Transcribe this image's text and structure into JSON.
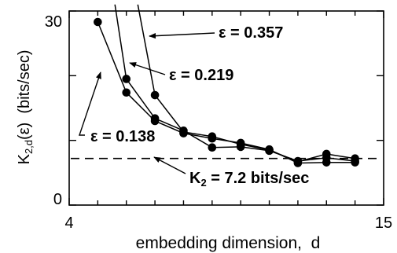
{
  "chart_data": {
    "type": "line",
    "xlabel": "embedding dimension,  d",
    "ylabel": {
      "main": "K",
      "sub": "2,d",
      "rest": "(ε)  (bits/sec)"
    },
    "xlim": [
      4,
      15
    ],
    "ylim": [
      0,
      30
    ],
    "x_ticks": [
      4,
      5,
      6,
      7,
      8,
      9,
      10,
      11,
      12,
      13,
      14,
      15
    ],
    "x_tick_labels": [
      "4",
      "15"
    ],
    "y_ticks": [
      0,
      10,
      20,
      30
    ],
    "y_tick_labels": [
      "0",
      "30"
    ],
    "grid": false,
    "series": [
      {
        "name": "ε = 0.357",
        "x": [
          6.4,
          7,
          8,
          9,
          10,
          11,
          12,
          13,
          14
        ],
        "y": [
          31,
          17,
          11.3,
          10.6,
          9.4,
          8.5,
          6.7,
          7.9,
          7.2
        ],
        "markers": [
          false,
          true,
          true,
          true,
          true,
          true,
          true,
          true,
          true
        ]
      },
      {
        "name": "ε = 0.219",
        "x": [
          5.6,
          6,
          7,
          8,
          9,
          10,
          11,
          12,
          13,
          14
        ],
        "y": [
          31,
          19.5,
          13.4,
          11.5,
          8.9,
          9,
          8.4,
          6.8,
          7.3,
          6.8
        ],
        "markers": [
          false,
          true,
          true,
          true,
          true,
          true,
          true,
          true,
          true,
          true
        ]
      },
      {
        "name": "ε = 0.138",
        "x": [
          5,
          6,
          7,
          8,
          9,
          10,
          11,
          12,
          13,
          14
        ],
        "y": [
          28.3,
          17.4,
          13,
          11.1,
          10.3,
          9.6,
          8.6,
          6.5,
          6.6,
          6.6
        ],
        "markers": [
          true,
          true,
          true,
          true,
          true,
          true,
          true,
          true,
          true,
          true
        ]
      }
    ],
    "reference_line": {
      "y": 7.2,
      "style": "dashed"
    },
    "annotations": [
      {
        "text": "ε = 0.357",
        "series": "ε = 0.357"
      },
      {
        "text": "ε = 0.219",
        "series": "ε = 0.219"
      },
      {
        "text": "ε = 0.138",
        "series": "ε = 0.138"
      },
      {
        "main": "K",
        "sub": "2",
        "rest": " = 7.2  bits/sec"
      }
    ]
  }
}
